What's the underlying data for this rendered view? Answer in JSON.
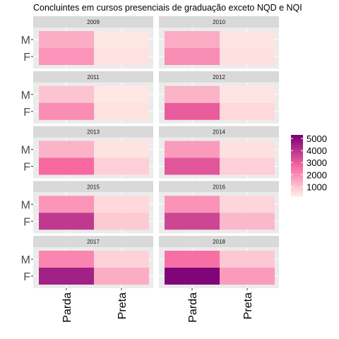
{
  "chart_data": {
    "type": "heatmap",
    "title": "Concluintes em cursos presenciais de graduação exceto NQD e NQI",
    "x_categories": [
      "Parda",
      "Preta"
    ],
    "y_categories": [
      "M",
      "F"
    ],
    "panels": [
      {
        "label": "2009",
        "values": {
          "M": {
            "Parda": 1450,
            "Preta": 380
          },
          "F": {
            "Parda": 1900,
            "Preta": 460
          }
        }
      },
      {
        "label": "2010",
        "values": {
          "M": {
            "Parda": 1480,
            "Preta": 420
          },
          "F": {
            "Parda": 2050,
            "Preta": 500
          }
        }
      },
      {
        "label": "2011",
        "values": {
          "M": {
            "Parda": 1050,
            "Preta": 350
          },
          "F": {
            "Parda": 2050,
            "Preta": 470
          }
        }
      },
      {
        "label": "2012",
        "values": {
          "M": {
            "Parda": 1350,
            "Preta": 430
          },
          "F": {
            "Parda": 3050,
            "Preta": 650
          }
        }
      },
      {
        "label": "2013",
        "values": {
          "M": {
            "Parda": 1350,
            "Preta": 440
          },
          "F": {
            "Parda": 2750,
            "Preta": 800
          }
        }
      },
      {
        "label": "2014",
        "values": {
          "M": {
            "Parda": 1800,
            "Preta": 500
          },
          "F": {
            "Parda": 3200,
            "Preta": 820
          }
        }
      },
      {
        "label": "2015",
        "values": {
          "M": {
            "Parda": 1900,
            "Preta": 650
          },
          "F": {
            "Parda": 3900,
            "Preta": 920
          }
        }
      },
      {
        "label": "2016",
        "values": {
          "M": {
            "Parda": 1950,
            "Preta": 700
          },
          "F": {
            "Parda": 3600,
            "Preta": 1250
          }
        }
      },
      {
        "label": "2017",
        "values": {
          "M": {
            "Parda": 2200,
            "Preta": 750
          },
          "F": {
            "Parda": 4500,
            "Preta": 1450
          }
        }
      },
      {
        "label": "2018",
        "values": {
          "M": {
            "Parda": 2600,
            "Preta": 950
          },
          "F": {
            "Parda": 5200,
            "Preta": 1800
          }
        }
      }
    ],
    "fill_range": [
      200,
      5300
    ],
    "color_low": "#fff0e8",
    "color_mid": "#f768a1",
    "color_high": "#7a0177",
    "legend": {
      "title": "",
      "breaks": [
        1000,
        2000,
        3000,
        4000,
        5000
      ],
      "labels": [
        "1000",
        "2000",
        "3000",
        "4000",
        "5000"
      ],
      "position": "right"
    },
    "panel_background": "#ebebeb",
    "strip_background": "#d9d9d9",
    "grid": true
  }
}
